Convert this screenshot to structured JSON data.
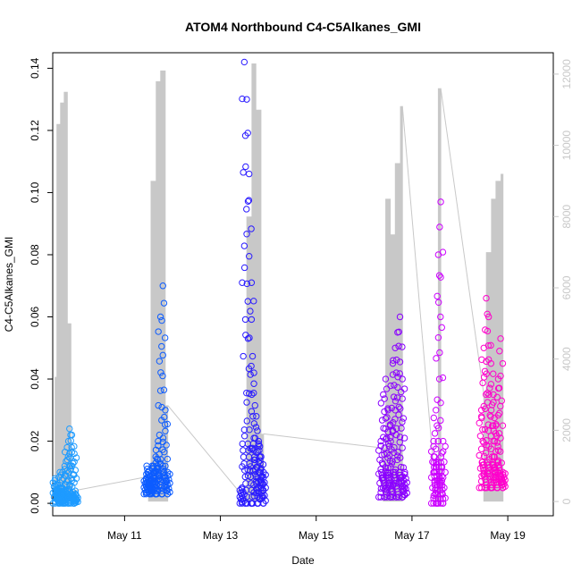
{
  "chart_data": {
    "type": "scatter",
    "title": "ATOM4 Northbound C4-C5Alkanes_GMI",
    "xlabel": "Date",
    "ylabel": "C4-C5Alkanes_GMI",
    "x_tick_labels": [
      "May 11",
      "May 13",
      "May 15",
      "May 17",
      "May 19"
    ],
    "x_tick_days": [
      11,
      13,
      15,
      17,
      19
    ],
    "x_range_days": [
      9.5,
      19.95
    ],
    "ylim": [
      -0.004,
      0.145
    ],
    "y_ticks": [
      0.0,
      0.02,
      0.04,
      0.06,
      0.08,
      0.1,
      0.12,
      0.14
    ],
    "y_tick_labels": [
      "0.00",
      "0.02",
      "0.04",
      "0.06",
      "0.08",
      "0.10",
      "0.12",
      "0.14"
    ],
    "y2lim": [
      -400,
      12600
    ],
    "y2_ticks": [
      0,
      2000,
      4000,
      6000,
      8000,
      10000,
      12000
    ],
    "y2_tick_labels": [
      "0",
      "2000",
      "4000",
      "6000",
      "8000",
      "10000",
      "12000"
    ],
    "grid": false,
    "legend": "none",
    "point_marker": "open-circle",
    "secondary_line_color": "#c8c8c8",
    "series": [
      {
        "color": "#1e9bff",
        "x": [
          9.55,
          9.6,
          9.65,
          9.7,
          9.72,
          9.75,
          9.8,
          9.85,
          9.9,
          9.95,
          9.98
        ],
        "y": [
          0.008,
          0.006,
          0.01,
          0.005,
          0.004,
          0.012,
          0.018,
          0.024,
          0.022,
          0.016,
          0.003
        ],
        "y_range": [
          0.0,
          0.024
        ]
      },
      {
        "color": "#0d5cff",
        "x": [
          11.45,
          11.5,
          11.55,
          11.6,
          11.65,
          11.7,
          11.75,
          11.8,
          11.85,
          11.9
        ],
        "y": [
          0.008,
          0.01,
          0.007,
          0.012,
          0.015,
          0.02,
          0.06,
          0.07,
          0.03,
          0.01
        ],
        "y_range": [
          0.003,
          0.07
        ]
      },
      {
        "color": "#2a1bff",
        "x": [
          13.45,
          13.5,
          13.55,
          13.6,
          13.65,
          13.7,
          13.75,
          13.8,
          13.85,
          13.9
        ],
        "y": [
          0.005,
          0.142,
          0.13,
          0.106,
          0.071,
          0.042,
          0.028,
          0.02,
          0.015,
          0.01
        ],
        "y_range": [
          0.0,
          0.142
        ]
      },
      {
        "color": "#8a00ff",
        "x": [
          16.35,
          16.4,
          16.45,
          16.5,
          16.55,
          16.6,
          16.65,
          16.7,
          16.75,
          16.8,
          16.85
        ],
        "y": [
          0.02,
          0.035,
          0.04,
          0.03,
          0.025,
          0.045,
          0.05,
          0.055,
          0.06,
          0.04,
          0.01
        ],
        "y_range": [
          0.002,
          0.061
        ]
      },
      {
        "color": "#cc00ff",
        "x": [
          17.45,
          17.5,
          17.55,
          17.6,
          17.65
        ],
        "y": [
          0.02,
          0.03,
          0.08,
          0.097,
          0.02
        ],
        "y_range": [
          0.0,
          0.097
        ]
      },
      {
        "color": "#ff00cc",
        "x": [
          18.45,
          18.5,
          18.55,
          18.6,
          18.65,
          18.7,
          18.75,
          18.8,
          18.85,
          18.9
        ],
        "y": [
          0.03,
          0.05,
          0.066,
          0.06,
          0.045,
          0.035,
          0.025,
          0.04,
          0.053,
          0.01
        ],
        "y_range": [
          0.005,
          0.066
        ]
      }
    ],
    "secondary_series": {
      "axis": "right",
      "color": "#c8c8c8",
      "x": [
        9.55,
        9.62,
        9.7,
        9.78,
        9.85,
        9.93,
        11.5,
        11.6,
        11.7,
        11.8,
        11.9,
        13.5,
        13.6,
        13.7,
        13.8,
        13.9,
        16.4,
        16.5,
        16.6,
        16.7,
        16.8,
        17.5,
        17.6,
        18.5,
        18.6,
        18.7,
        18.8,
        18.9
      ],
      "y": [
        3500,
        10600,
        11200,
        11500,
        5000,
        300,
        700,
        9000,
        11800,
        12100,
        2700,
        100,
        8000,
        12300,
        11000,
        1900,
        1500,
        8500,
        7500,
        9500,
        11100,
        200,
        11600,
        3000,
        7000,
        8500,
        9000,
        9200
      ],
      "y_range": [
        0,
        12300
      ]
    }
  }
}
